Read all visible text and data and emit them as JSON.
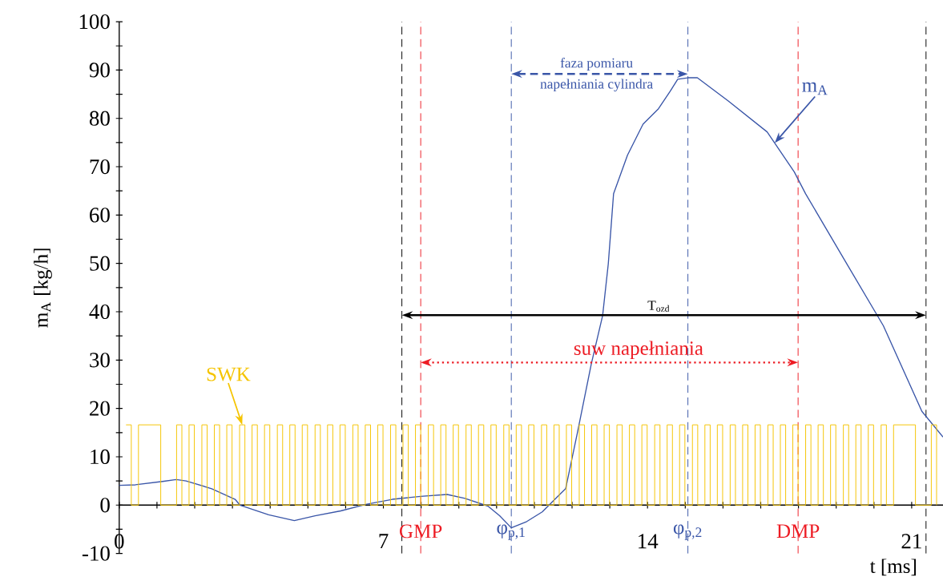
{
  "chart_data": {
    "type": "line",
    "xlabel": "t [ms]",
    "ylabel": "m$_{A}$ [kg/h]",
    "xlim": [
      0,
      21.83
    ],
    "ylim": [
      -10,
      100
    ],
    "xticks": [
      0,
      {
        "value": 1,
        "label": null
      },
      {
        "value": 2,
        "label": null
      },
      {
        "value": 3,
        "label": null
      },
      {
        "value": 4,
        "label": null
      },
      {
        "value": 5,
        "label": null
      },
      {
        "value": 6,
        "label": null
      },
      7,
      {
        "value": 8,
        "label": null
      },
      {
        "value": 9,
        "label": null
      },
      {
        "value": 10,
        "label": null
      },
      {
        "value": 11,
        "label": null
      },
      {
        "value": 12,
        "label": null
      },
      {
        "value": 13,
        "label": null
      },
      14,
      {
        "value": 15,
        "label": null
      },
      {
        "value": 16,
        "label": null
      },
      {
        "value": 17,
        "label": null
      },
      {
        "value": 18,
        "label": null
      },
      {
        "value": 19,
        "label": null
      },
      {
        "value": 20,
        "label": null
      },
      21
    ],
    "yticks": [
      -10,
      {
        "value": -5,
        "label": null
      },
      0,
      {
        "value": 5,
        "label": null
      },
      10,
      {
        "value": 15,
        "label": null
      },
      20,
      {
        "value": 25,
        "label": null
      },
      30,
      {
        "value": 35,
        "label": null
      },
      40,
      {
        "value": 45,
        "label": null
      },
      50,
      {
        "value": 55,
        "label": null
      },
      60,
      {
        "value": 65,
        "label": null
      },
      70,
      {
        "value": 75,
        "label": null
      },
      80,
      {
        "value": 85,
        "label": null
      },
      90,
      {
        "value": 95,
        "label": null
      },
      100
    ],
    "series": [
      {
        "color": "#3a56a8",
        "x": [
          0,
          0.43,
          1.15,
          1.51,
          1.77,
          2.45,
          3.07,
          3.2,
          3.96,
          4.64,
          5.19,
          5.87,
          6.56,
          7.24,
          7.99,
          8.69,
          9.16,
          9.77,
          10.08,
          10.39,
          10.8,
          11.21,
          11.62,
          11.83,
          12.14,
          12.51,
          12.81,
          12.96,
          13.1,
          13.47,
          13.88,
          14.29,
          14.6,
          14.8,
          15.07,
          15.32,
          15.73,
          16.14,
          17.17,
          17.89,
          18.19,
          19.22,
          20.25,
          21.27,
          21.83
        ],
        "values": [
          4.1,
          4.2,
          4.9,
          5.3,
          5.0,
          3.4,
          1.2,
          0,
          -2.0,
          -3.2,
          -2.2,
          -1.2,
          0.2,
          1.2,
          1.8,
          2.2,
          1.4,
          -0.2,
          -2.2,
          -4.7,
          -3.4,
          -1.4,
          1.8,
          3.4,
          14.9,
          29.2,
          39.2,
          49.9,
          64.4,
          72.4,
          78.8,
          82.0,
          85.6,
          88.1,
          88.4,
          88.4,
          86.0,
          83.6,
          77.2,
          68.9,
          64.4,
          50.7,
          37.1,
          19.4,
          14.1
        ]
      },
      {
        "type": "step",
        "color": "#f5c400",
        "x": [
          0.18,
          0.32,
          0.51,
          1.1,
          1.52,
          1.66,
          1.85,
          1.99,
          2.19,
          2.33,
          2.52,
          2.66,
          2.85,
          2.99,
          3.19,
          3.33,
          3.52,
          3.66,
          3.85,
          3.99,
          4.19,
          4.33,
          4.52,
          4.66,
          4.85,
          4.99,
          5.19,
          5.33,
          5.52,
          5.66,
          5.85,
          5.99,
          6.19,
          6.33,
          6.52,
          6.66,
          6.85,
          6.99,
          7.19,
          7.33,
          7.52,
          7.66,
          7.85,
          7.99,
          8.19,
          8.33,
          8.52,
          8.66,
          8.85,
          8.99,
          9.19,
          9.33,
          9.52,
          9.66,
          9.85,
          9.99,
          10.19,
          10.33,
          10.52,
          10.66,
          10.85,
          10.99,
          11.19,
          11.33,
          11.52,
          11.66,
          11.85,
          11.99,
          12.19,
          12.33,
          12.52,
          12.66,
          12.85,
          12.99,
          13.19,
          13.33,
          13.52,
          13.66,
          13.85,
          13.99,
          14.19,
          14.33,
          14.52,
          14.66,
          14.85,
          14.99,
          15.19,
          15.33,
          15.52,
          15.66,
          15.85,
          15.99,
          16.19,
          16.33,
          16.52,
          16.66,
          16.85,
          16.99,
          17.19,
          17.33,
          17.52,
          17.66,
          17.85,
          17.99,
          18.19,
          18.33,
          18.52,
          18.66,
          18.85,
          18.99,
          19.19,
          19.33,
          19.52,
          19.66,
          19.85,
          19.99,
          20.19,
          20.33,
          20.52,
          21.1,
          21.52,
          21.66
        ],
        "values": [
          16.6,
          0,
          16.6,
          0,
          16.6,
          0,
          16.6,
          0,
          16.6,
          0,
          16.6,
          0,
          16.6,
          0,
          16.6,
          0,
          16.6,
          0,
          16.6,
          0,
          16.6,
          0,
          16.6,
          0,
          16.6,
          0,
          16.6,
          0,
          16.6,
          0,
          16.6,
          0,
          16.6,
          0,
          16.6,
          0,
          16.6,
          0,
          16.6,
          0,
          16.6,
          0,
          16.6,
          0,
          16.6,
          0,
          16.6,
          0,
          16.6,
          0,
          16.6,
          0,
          16.6,
          0,
          16.6,
          0,
          16.6,
          0,
          16.6,
          0,
          16.6,
          0,
          16.6,
          0,
          16.6,
          0,
          16.6,
          0,
          16.6,
          0,
          16.6,
          0,
          16.6,
          0,
          16.6,
          0,
          16.6,
          0,
          16.6,
          0,
          16.6,
          0,
          16.6,
          0,
          16.6,
          0,
          16.6,
          0,
          16.6,
          0,
          16.6,
          0,
          16.6,
          0,
          16.6,
          0,
          16.6,
          0,
          16.6,
          0,
          16.6,
          0,
          16.6,
          0,
          16.6,
          0,
          16.6,
          0,
          16.6,
          0,
          16.6,
          0,
          16.6,
          0,
          16.6,
          0,
          16.6,
          0,
          16.6,
          0,
          16.6,
          0
        ]
      }
    ],
    "ref_lines": [
      {
        "axis": "x",
        "value": 7.49,
        "color": "#000000",
        "line_style": "dashed"
      },
      {
        "axis": "x",
        "value": 21.38,
        "color": "#000000",
        "line_style": "dashed"
      },
      {
        "axis": "x",
        "value": 7.99,
        "label": "GMP",
        "color": "#ed1c24",
        "line_style": "dashed"
      },
      {
        "axis": "x",
        "value": 17.99,
        "label": "DMP",
        "color": "#ed1c24",
        "line_style": "dashed"
      },
      {
        "axis": "x",
        "value": 10.39,
        "label": "φ$_{p,1}$",
        "color": "#3a56a8",
        "line_style": "dashed"
      },
      {
        "axis": "x",
        "value": 15.07,
        "label": "φ$_{p,2}$",
        "color": "#3a56a8",
        "line_style": "dashed"
      }
    ],
    "annotations": [
      "faza pomiaru",
      "napełniania cylindra",
      "T$_{ozd}$",
      "suw napełniania",
      {
        "text": "m$_{A}$",
        "x": 17.37,
        "y": 74.9
      },
      {
        "text": "SWK",
        "x": 3.26,
        "y": 16.6
      }
    ]
  }
}
